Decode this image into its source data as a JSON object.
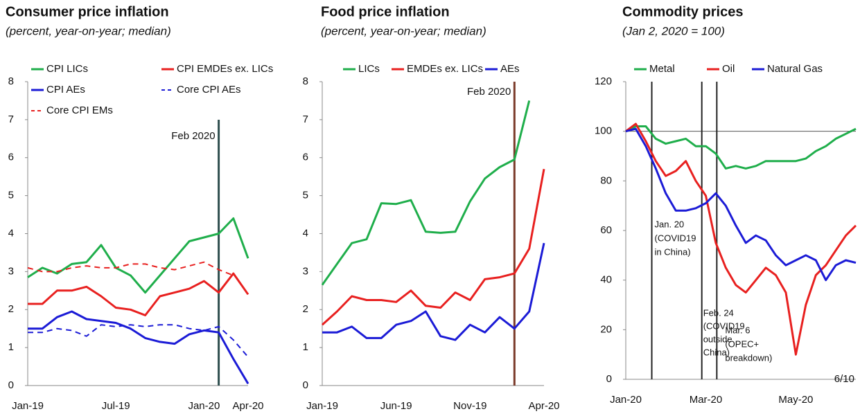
{
  "chart_data": [
    {
      "type": "line",
      "title": "Consumer price inflation",
      "subtitle": "(percent, year-on-year; median)",
      "categories": [
        "Jan-19",
        null,
        null,
        null,
        null,
        null,
        "Jul-19",
        null,
        null,
        null,
        null,
        null,
        "Jan-20",
        null,
        null,
        "Apr-20"
      ],
      "series": [
        {
          "name": "CPI LICs",
          "color": "#1fae4b",
          "dash": false,
          "values": [
            2.85,
            3.1,
            2.95,
            3.2,
            3.25,
            3.7,
            3.1,
            2.9,
            2.45,
            2.9,
            3.35,
            3.8,
            3.9,
            4.0,
            4.4,
            3.35
          ]
        },
        {
          "name": "CPI EMDEs ex. LICs",
          "color": "#e8201f",
          "dash": false,
          "values": [
            2.15,
            2.15,
            2.5,
            2.5,
            2.6,
            2.35,
            2.05,
            2.0,
            1.85,
            2.35,
            2.45,
            2.55,
            2.75,
            2.45,
            2.95,
            2.4
          ]
        },
        {
          "name": "CPI AEs",
          "color": "#1b1bd6",
          "dash": false,
          "values": [
            1.5,
            1.5,
            1.8,
            1.95,
            1.75,
            1.7,
            1.65,
            1.5,
            1.25,
            1.15,
            1.1,
            1.35,
            1.45,
            1.4,
            0.7,
            0.05
          ]
        },
        {
          "name": "Core CPI AEs",
          "color": "#1b1bd6",
          "dash": true,
          "values": [
            1.4,
            1.4,
            1.5,
            1.45,
            1.3,
            1.6,
            1.55,
            1.6,
            1.55,
            1.6,
            1.6,
            1.5,
            1.45,
            1.55,
            1.2,
            0.75
          ]
        },
        {
          "name": "Core CPI EMs",
          "color": "#e8201f",
          "dash": true,
          "values": [
            3.1,
            3.0,
            3.0,
            3.1,
            3.15,
            3.1,
            3.1,
            3.2,
            3.2,
            3.1,
            3.05,
            3.15,
            3.25,
            3.05,
            2.9,
            null
          ]
        }
      ],
      "ylim": [
        0,
        8
      ],
      "yticks": [
        0,
        1,
        2,
        3,
        4,
        5,
        6,
        7,
        8
      ],
      "annotations": [
        {
          "lines": [
            "Feb 2020"
          ],
          "index": 13
        }
      ]
    },
    {
      "type": "line",
      "title": "Food price inflation",
      "subtitle": "(percent, year-on-year; median)",
      "categories": [
        "Jan-19",
        null,
        null,
        null,
        null,
        "Jun-19",
        null,
        null,
        null,
        null,
        "Nov-19",
        null,
        null,
        null,
        null,
        "Apr-20"
      ],
      "series": [
        {
          "name": "LICs",
          "color": "#1fae4b",
          "dash": false,
          "values": [
            2.65,
            3.2,
            3.75,
            3.85,
            4.8,
            4.78,
            4.88,
            4.05,
            4.02,
            4.05,
            4.85,
            5.45,
            5.75,
            5.95,
            7.5,
            null
          ]
        },
        {
          "name": "EMDEs ex. LICs",
          "color": "#e8201f",
          "dash": false,
          "values": [
            1.6,
            1.95,
            2.35,
            2.25,
            2.25,
            2.2,
            2.5,
            2.1,
            2.05,
            2.45,
            2.25,
            2.8,
            2.85,
            2.95,
            3.6,
            5.7
          ]
        },
        {
          "name": "AEs",
          "color": "#1b1bd6",
          "dash": false,
          "values": [
            1.4,
            1.4,
            1.55,
            1.25,
            1.25,
            1.6,
            1.7,
            1.95,
            1.3,
            1.2,
            1.6,
            1.4,
            1.8,
            1.5,
            1.95,
            3.75
          ]
        }
      ],
      "ylim": [
        0,
        8
      ],
      "yticks": [
        0,
        1,
        2,
        3,
        4,
        5,
        6,
        7,
        8
      ],
      "annotations": [
        {
          "lines": [
            "Feb 2020"
          ],
          "index": 13
        }
      ]
    },
    {
      "type": "line",
      "title": "Commodity prices",
      "subtitle": "(Jan 2, 2020 = 100)",
      "categories": [
        "Jan-20",
        null,
        null,
        null,
        null,
        null,
        null,
        null,
        "Mar-20",
        null,
        null,
        null,
        null,
        null,
        null,
        null,
        null,
        "May-20",
        null,
        null,
        null,
        null,
        null,
        null
      ],
      "series": [
        {
          "name": "Metal",
          "color": "#1fae4b",
          "dash": false,
          "values": [
            100,
            102,
            102,
            97,
            95,
            96,
            97,
            94,
            94,
            91,
            85,
            86,
            85,
            86,
            88,
            88,
            88,
            88,
            89,
            92,
            94,
            97,
            99,
            101
          ]
        },
        {
          "name": "Oil",
          "color": "#e8201f",
          "dash": false,
          "values": [
            100,
            103,
            96,
            88,
            82,
            84,
            88,
            80,
            74,
            55,
            45,
            38,
            35,
            40,
            45,
            42,
            35,
            10,
            30,
            42,
            46,
            52,
            58,
            62
          ]
        },
        {
          "name": "Natural Gas",
          "color": "#1b1bd6",
          "dash": false,
          "values": [
            100,
            101,
            94,
            85,
            75,
            68,
            68,
            69,
            71,
            75,
            70,
            62,
            55,
            58,
            56,
            50,
            46,
            48,
            50,
            48,
            40,
            46,
            48,
            47
          ]
        }
      ],
      "ylim": [
        0,
        120
      ],
      "yticks": [
        0,
        20,
        40,
        60,
        80,
        100,
        120
      ],
      "reference_line": 100,
      "annotations": [
        {
          "lines": [
            "Jan. 20",
            "(COVID19",
            "in China)"
          ],
          "index": 2.6
        },
        {
          "lines": [
            "Feb. 24",
            "(COVID19",
            "outside",
            "China)"
          ],
          "index": 7.6
        },
        {
          "lines": [
            "Mar. 6",
            "(OPEC+",
            "breakdown)"
          ],
          "index": 9.1
        }
      ],
      "footnote": "6/10"
    }
  ]
}
